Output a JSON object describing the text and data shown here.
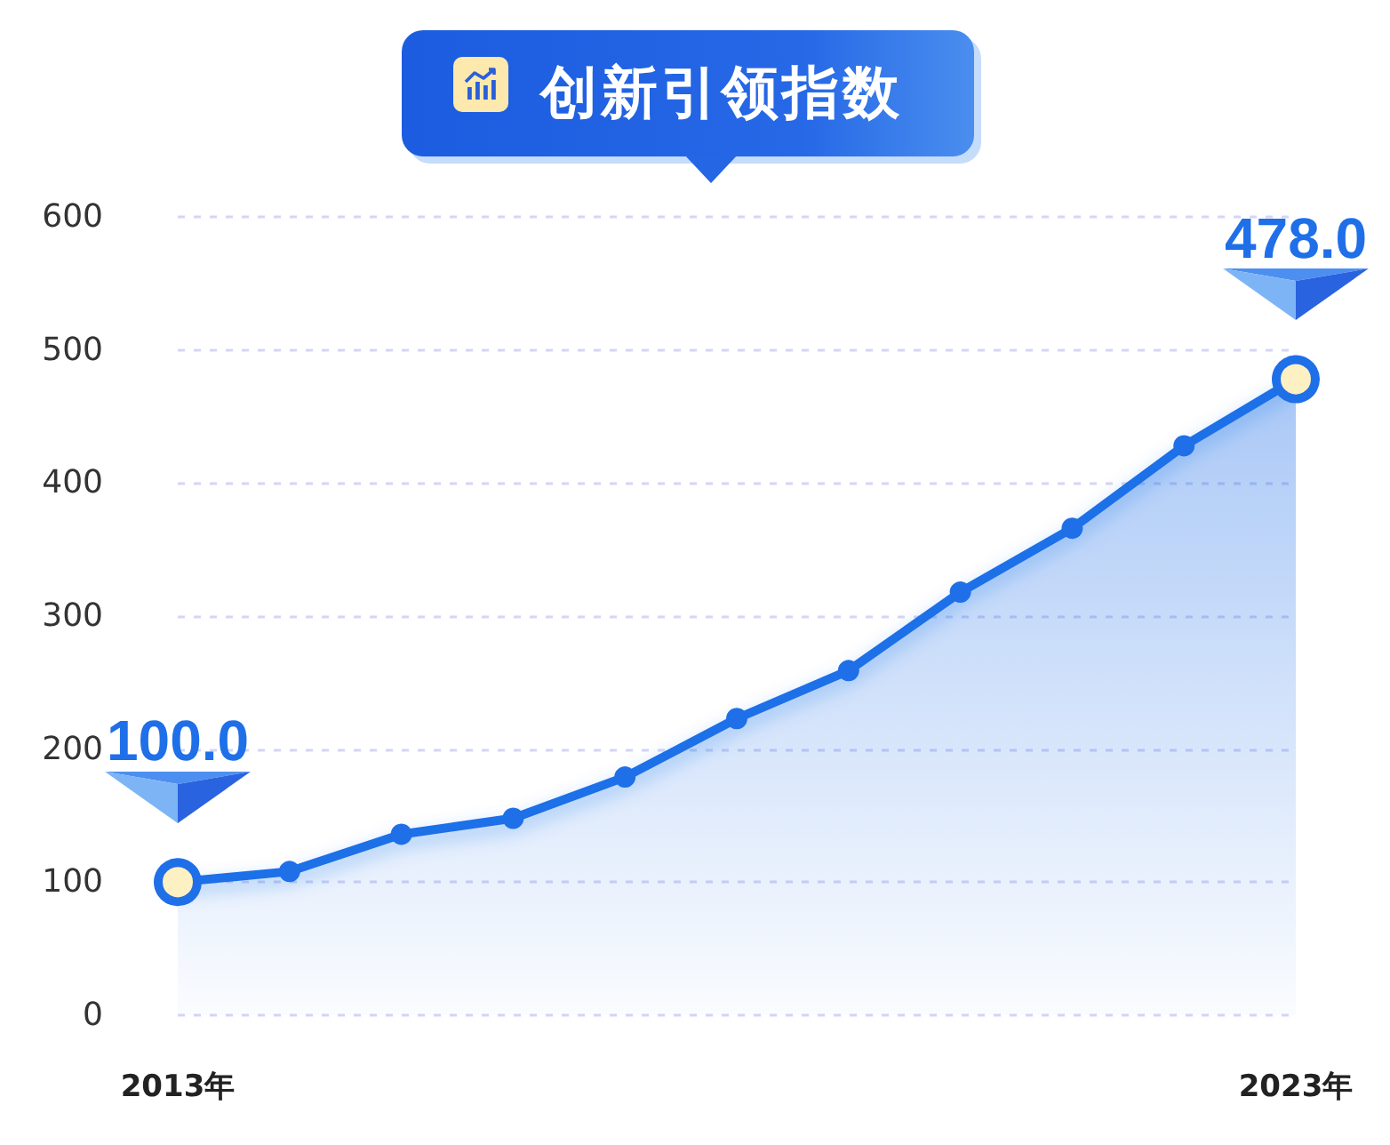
{
  "chart_data": {
    "type": "area",
    "title": "创新引领指数",
    "categories": [
      "2013年",
      null,
      null,
      null,
      null,
      null,
      null,
      null,
      null,
      null,
      "2023年"
    ],
    "values": [
      100,
      108,
      136,
      148,
      179,
      223,
      259,
      318,
      366,
      428,
      478
    ],
    "value_labels": [
      "100.0",
      null,
      null,
      null,
      null,
      null,
      null,
      null,
      null,
      null,
      "478.0"
    ],
    "color": "#1f6fe8",
    "ylim": [
      0,
      600
    ],
    "yticks": [
      0,
      100,
      200,
      300,
      400,
      500,
      600
    ],
    "grid": "y",
    "marker": "circle"
  }
}
